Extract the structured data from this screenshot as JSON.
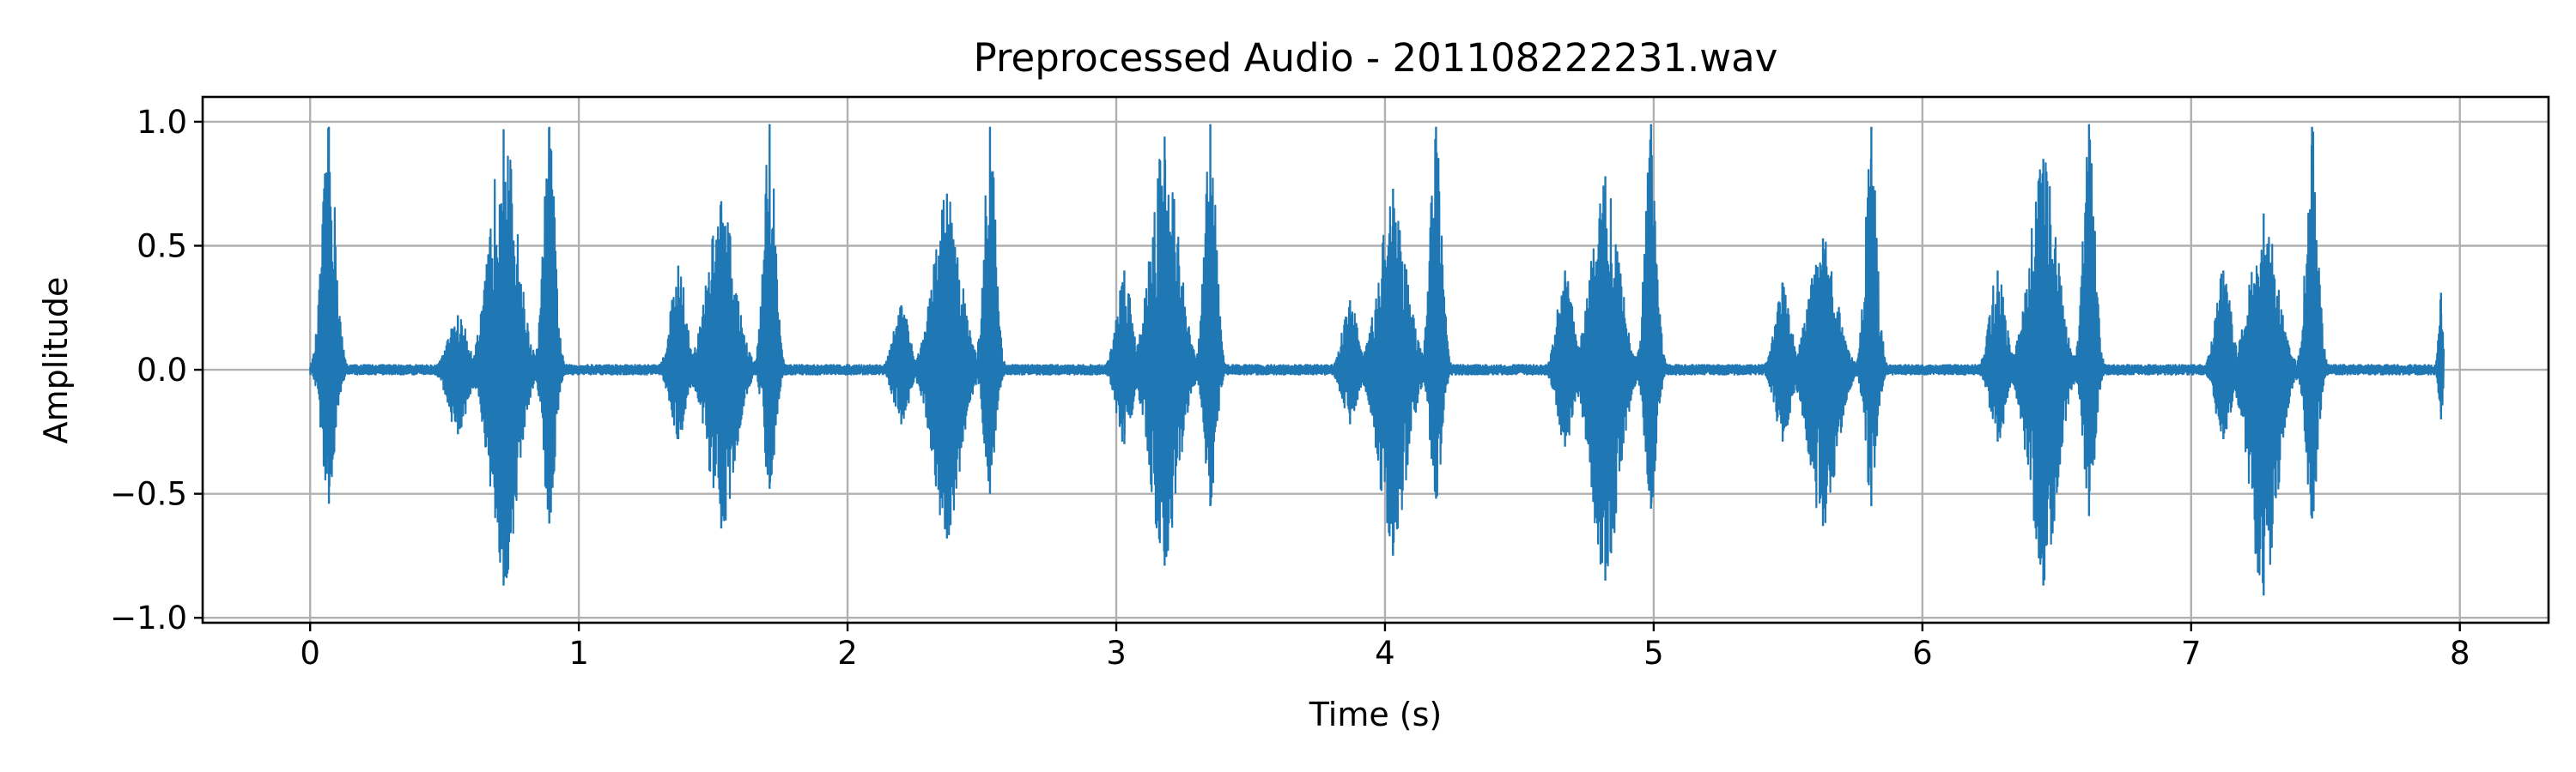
{
  "chart_data": {
    "type": "line",
    "title": "Preprocessed Audio - 201108222231.wav",
    "xlabel": "Time (s)",
    "ylabel": "Amplitude",
    "xlim": [
      -0.4,
      8.33
    ],
    "ylim": [
      -1.02,
      1.1
    ],
    "x_ticks": [
      0,
      1,
      2,
      3,
      4,
      5,
      6,
      7,
      8
    ],
    "x_tick_labels": [
      "0",
      "1",
      "2",
      "3",
      "4",
      "5",
      "6",
      "7",
      "8"
    ],
    "y_ticks": [
      1.0,
      0.5,
      0.0,
      -0.5,
      -1.0
    ],
    "y_tick_labels": [
      "1.0",
      "0.5",
      "0.0",
      "−0.5",
      "−1.0"
    ],
    "grid": true,
    "legend": false,
    "series": [
      {
        "color": "#1f77b4",
        "duration_s": 7.94,
        "noise_floor": 0.02,
        "bursts": [
          {
            "t": 0.07,
            "width": 0.035,
            "pos_peak": 0.98,
            "neg_peak": -0.54
          },
          {
            "t": 0.55,
            "width": 0.05,
            "pos_peak": 0.22,
            "neg_peak": -0.26
          },
          {
            "t": 0.72,
            "width": 0.07,
            "pos_peak": 0.97,
            "neg_peak": -0.87
          },
          {
            "t": 0.89,
            "width": 0.03,
            "pos_peak": 0.98,
            "neg_peak": -0.62
          },
          {
            "t": 1.37,
            "width": 0.04,
            "pos_peak": 0.42,
            "neg_peak": -0.28
          },
          {
            "t": 1.53,
            "width": 0.07,
            "pos_peak": 0.68,
            "neg_peak": -0.64
          },
          {
            "t": 1.71,
            "width": 0.03,
            "pos_peak": 0.99,
            "neg_peak": -0.48
          },
          {
            "t": 2.2,
            "width": 0.04,
            "pos_peak": 0.26,
            "neg_peak": -0.22
          },
          {
            "t": 2.37,
            "width": 0.07,
            "pos_peak": 0.71,
            "neg_peak": -0.68
          },
          {
            "t": 2.53,
            "width": 0.03,
            "pos_peak": 0.98,
            "neg_peak": -0.5
          },
          {
            "t": 3.03,
            "width": 0.04,
            "pos_peak": 0.4,
            "neg_peak": -0.3
          },
          {
            "t": 3.18,
            "width": 0.07,
            "pos_peak": 0.94,
            "neg_peak": -0.79
          },
          {
            "t": 3.35,
            "width": 0.03,
            "pos_peak": 0.99,
            "neg_peak": -0.55
          },
          {
            "t": 3.87,
            "width": 0.04,
            "pos_peak": 0.28,
            "neg_peak": -0.22
          },
          {
            "t": 4.03,
            "width": 0.07,
            "pos_peak": 0.73,
            "neg_peak": -0.75
          },
          {
            "t": 4.19,
            "width": 0.03,
            "pos_peak": 0.98,
            "neg_peak": -0.52
          },
          {
            "t": 4.67,
            "width": 0.04,
            "pos_peak": 0.4,
            "neg_peak": -0.31
          },
          {
            "t": 4.82,
            "width": 0.07,
            "pos_peak": 0.78,
            "neg_peak": -0.85
          },
          {
            "t": 4.99,
            "width": 0.03,
            "pos_peak": 0.99,
            "neg_peak": -0.56
          },
          {
            "t": 5.48,
            "width": 0.04,
            "pos_peak": 0.35,
            "neg_peak": -0.29
          },
          {
            "t": 5.63,
            "width": 0.07,
            "pos_peak": 0.53,
            "neg_peak": -0.63
          },
          {
            "t": 5.81,
            "width": 0.03,
            "pos_peak": 0.98,
            "neg_peak": -0.55
          },
          {
            "t": 6.28,
            "width": 0.04,
            "pos_peak": 0.4,
            "neg_peak": -0.29
          },
          {
            "t": 6.45,
            "width": 0.07,
            "pos_peak": 0.85,
            "neg_peak": -0.87
          },
          {
            "t": 6.62,
            "width": 0.03,
            "pos_peak": 0.99,
            "neg_peak": -0.59
          },
          {
            "t": 7.12,
            "width": 0.04,
            "pos_peak": 0.4,
            "neg_peak": -0.28
          },
          {
            "t": 7.27,
            "width": 0.07,
            "pos_peak": 0.63,
            "neg_peak": -0.91
          },
          {
            "t": 7.45,
            "width": 0.03,
            "pos_peak": 0.98,
            "neg_peak": -0.6
          },
          {
            "t": 7.93,
            "width": 0.012,
            "pos_peak": 0.31,
            "neg_peak": -0.2
          }
        ]
      }
    ]
  }
}
